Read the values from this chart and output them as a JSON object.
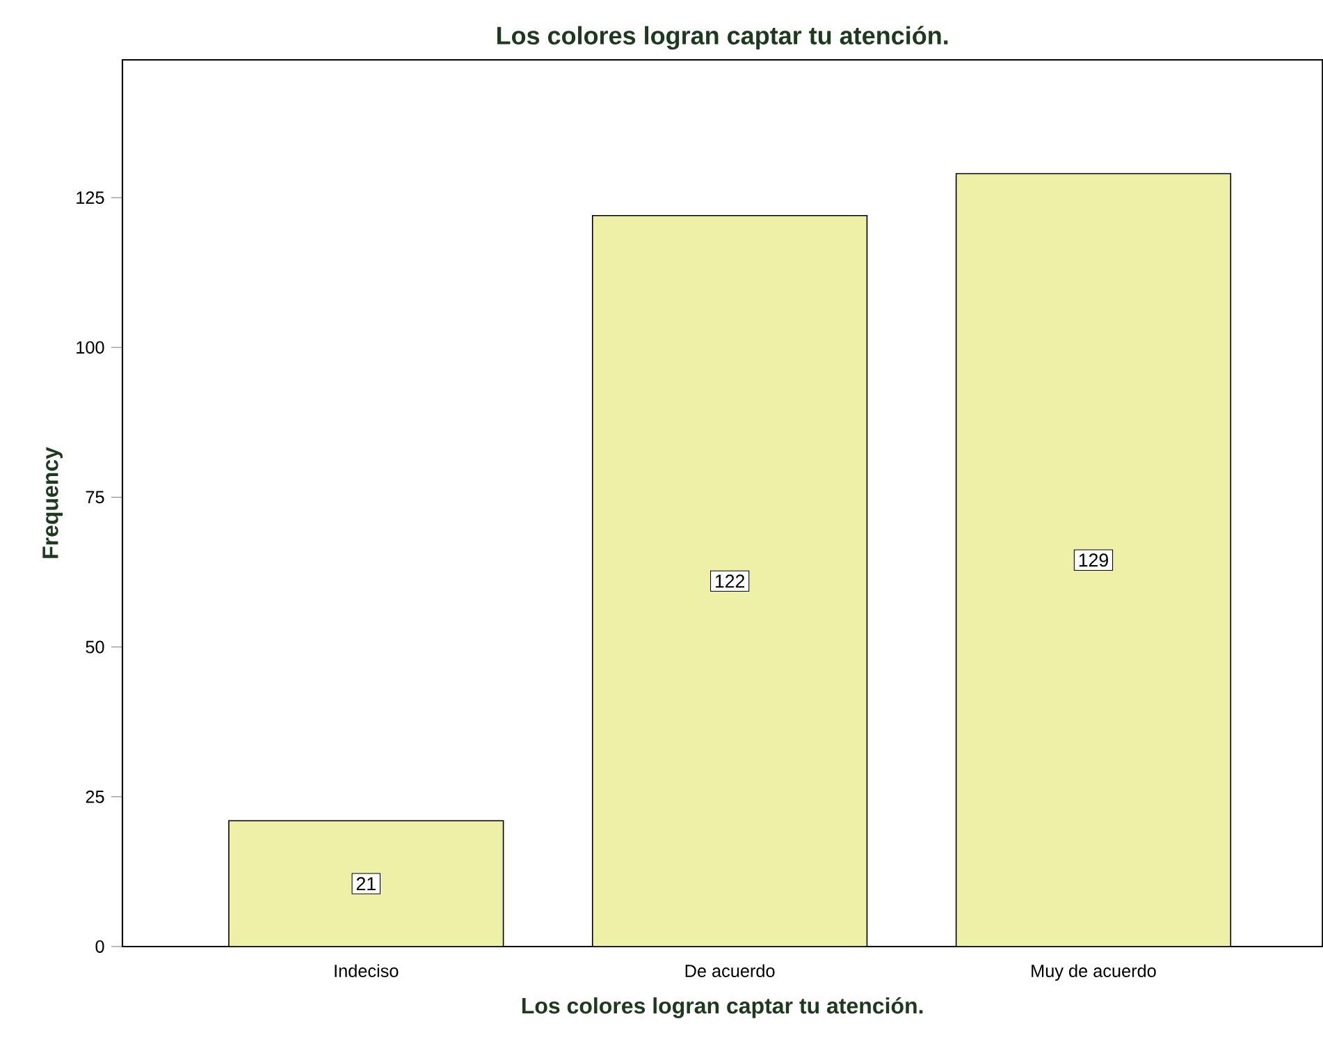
{
  "chart_data": {
    "type": "bar",
    "title": "Los colores logran captar tu atención.",
    "xlabel": "Los colores logran captar tu atención.",
    "ylabel": "Frequency",
    "categories": [
      "Indeciso",
      "De acuerdo",
      "Muy de acuerdo"
    ],
    "values": [
      21,
      122,
      129
    ],
    "color": "#eef0a8",
    "ylim": [
      0,
      148
    ],
    "yticks": [
      0,
      25,
      50,
      75,
      100,
      125
    ],
    "data_labels": true,
    "grid": false
  }
}
